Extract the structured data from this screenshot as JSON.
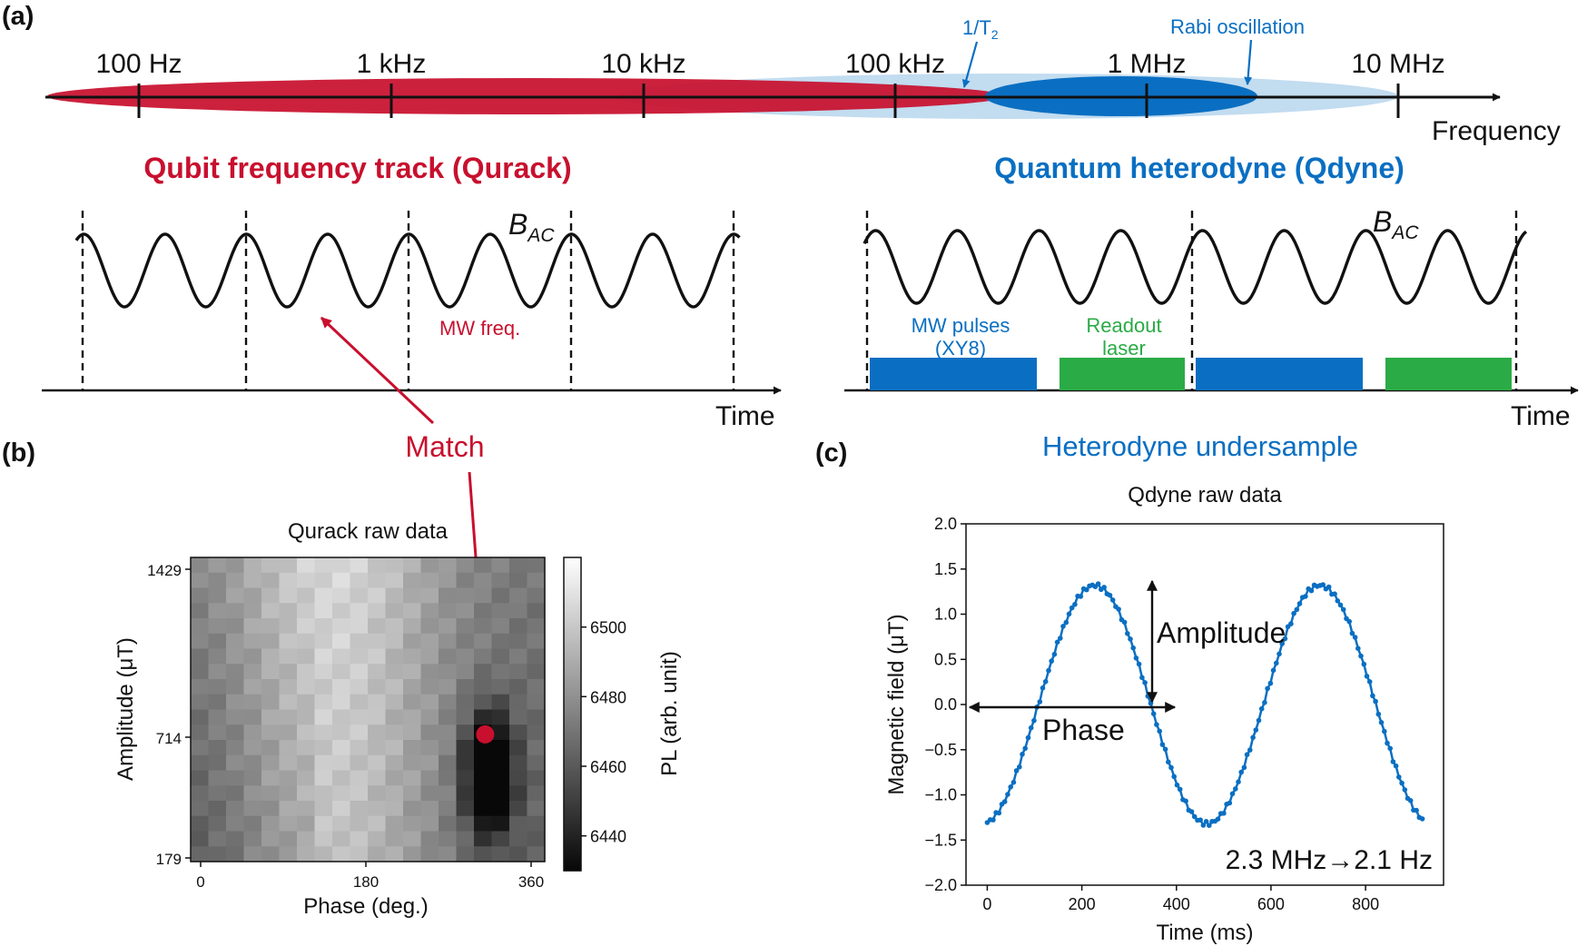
{
  "colors": {
    "red": "#c8102e",
    "blue": "#0a6fc2",
    "light_blue": "#c2dcf0",
    "green": "#2aab45",
    "black": "#111111"
  },
  "panel_labels": {
    "a": "(a)",
    "b": "(b)",
    "c": "(c)"
  },
  "spectrum": {
    "ticks": [
      "100 Hz",
      "1 kHz",
      "10 kHz",
      "100 kHz",
      "1 MHz",
      "10 MHz"
    ],
    "axis_label": "Frequency",
    "t2_label": "1/T",
    "t2_sub": "2",
    "rabi_label": "Rabi oscillation"
  },
  "qurack": {
    "title": "Qubit frequency track (Qurack)",
    "signal_label_main": "B",
    "signal_label_sub": "AC",
    "mw_label": "MW freq.",
    "time_label": "Time",
    "match_label": "Match"
  },
  "qdyne": {
    "title": "Quantum heterodyne (Qdyne)",
    "signal_label_main": "B",
    "signal_label_sub": "AC",
    "mw_pulses_line1": "MW pulses",
    "mw_pulses_line2": "(XY8)",
    "readout_line1": "Readout",
    "readout_line2": "laser",
    "time_label": "Time",
    "undersample_label": "Heterodyne undersample"
  },
  "chart_data": [
    {
      "type": "heatmap",
      "title": "Qurack raw data",
      "xlabel": "Phase (deg.)",
      "ylabel": "Amplitude (μT)",
      "x_ticks": [
        "0",
        "180",
        "360"
      ],
      "y_ticks": [
        "1429",
        "714",
        "179"
      ],
      "xlim": [
        0,
        360
      ],
      "ylim": [
        179,
        1429
      ],
      "grid_size": [
        20,
        20
      ],
      "colorbar": {
        "label": "PL (arb. unit)",
        "ticks": [
          "6500",
          "6480",
          "6460",
          "6440"
        ],
        "range": [
          6430,
          6520
        ]
      },
      "marker": {
        "phase": 310,
        "amplitude": 714
      }
    },
    {
      "type": "scatter",
      "title": "Qdyne raw data",
      "xlabel": "Time (ms)",
      "ylabel": "Magnetic field (μT)",
      "x_ticks": [
        "0",
        "200",
        "400",
        "600",
        "800"
      ],
      "y_ticks": [
        "2.0",
        "1.5",
        "1.0",
        "0.5",
        "0.0",
        "−0.5",
        "−1.0",
        "−1.5",
        "−2.0"
      ],
      "xlim": [
        -45,
        965
      ],
      "ylim": [
        -2.0,
        2.0
      ],
      "series": [
        {
          "amplitude": 1.32,
          "period_ms": 476,
          "peak_ms": 227,
          "t_start": 0,
          "t_end": 920,
          "n_points": 150
        }
      ],
      "annotations": {
        "amplitude": "Amplitude",
        "phase": "Phase",
        "conversion": "2.3 MHz→2.1 Hz"
      }
    }
  ]
}
